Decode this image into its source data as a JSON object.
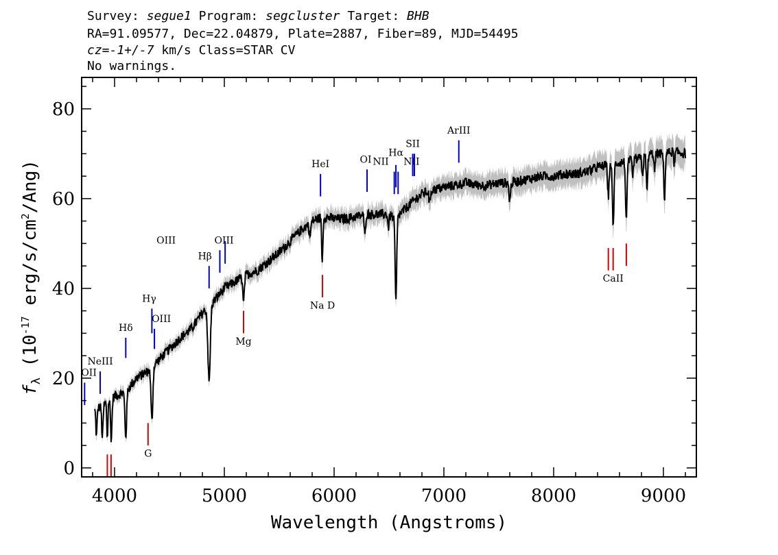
{
  "header": {
    "line1": [
      {
        "text": "Survey: ",
        "italic": false
      },
      {
        "text": "segue1",
        "italic": true
      },
      {
        "text": " Program: ",
        "italic": false
      },
      {
        "text": "segcluster",
        "italic": true
      },
      {
        "text": " Target: ",
        "italic": false
      },
      {
        "text": "BHB",
        "italic": true
      }
    ],
    "line2": "RA=91.09577, Dec=22.04879, Plate=2887, Fiber=89, MJD=54495",
    "line3": [
      {
        "text": "cz=-1+/-7",
        "italic": true
      },
      {
        "text": " km/s Class=STAR CV",
        "italic": false
      }
    ],
    "line4": "No warnings."
  },
  "chart_data": {
    "type": "line",
    "xlabel": "Wavelength (Angstroms)",
    "ylabel_prefix": "f",
    "ylabel_sub": "λ",
    "ylabel_mid": " (10",
    "ylabel_exp1": "-17",
    "ylabel_post": " erg/s/cm",
    "ylabel_exp2": "2",
    "ylabel_end": "/Ang)",
    "xlim": [
      3700,
      9300
    ],
    "ylim": [
      -2,
      87
    ],
    "xticks": [
      4000,
      5000,
      6000,
      7000,
      8000,
      9000
    ],
    "yticks": [
      0,
      20,
      40,
      60,
      80
    ],
    "x_minor_step": 200,
    "y_minor_step": 5,
    "spectrum_color": "#000000",
    "error_color": "#c0c0c0",
    "continuum": [
      [
        3820,
        13
      ],
      [
        3900,
        14
      ],
      [
        4000,
        16
      ],
      [
        4100,
        17
      ],
      [
        4200,
        20
      ],
      [
        4300,
        21.5
      ],
      [
        4400,
        24
      ],
      [
        4500,
        26.5
      ],
      [
        4600,
        29
      ],
      [
        4700,
        31
      ],
      [
        4800,
        34.5
      ],
      [
        4900,
        37
      ],
      [
        5000,
        40
      ],
      [
        5100,
        41.5
      ],
      [
        5200,
        43
      ],
      [
        5300,
        44
      ],
      [
        5400,
        46
      ],
      [
        5500,
        48
      ],
      [
        5600,
        50.5
      ],
      [
        5700,
        53
      ],
      [
        5800,
        55
      ],
      [
        5900,
        56
      ],
      [
        6000,
        55.5
      ],
      [
        6100,
        55.5
      ],
      [
        6200,
        56
      ],
      [
        6300,
        56.5
      ],
      [
        6400,
        56.5
      ],
      [
        6500,
        56.5
      ],
      [
        6550,
        55.5
      ],
      [
        6600,
        56.5
      ],
      [
        6700,
        59
      ],
      [
        6800,
        61
      ],
      [
        6900,
        62
      ],
      [
        7000,
        62.5
      ],
      [
        7100,
        63
      ],
      [
        7200,
        63.5
      ],
      [
        7300,
        63
      ],
      [
        7400,
        63
      ],
      [
        7500,
        63.5
      ],
      [
        7600,
        63.5
      ],
      [
        7700,
        64
      ],
      [
        7800,
        64.5
      ],
      [
        7900,
        65
      ],
      [
        8000,
        65
      ],
      [
        8100,
        65.5
      ],
      [
        8200,
        65.5
      ],
      [
        8300,
        66
      ],
      [
        8400,
        67
      ],
      [
        8500,
        67.5
      ],
      [
        8600,
        68
      ],
      [
        8700,
        68.5
      ],
      [
        8800,
        69
      ],
      [
        8900,
        70
      ],
      [
        9000,
        70
      ],
      [
        9100,
        70.5
      ],
      [
        9200,
        70
      ]
    ],
    "absorption": [
      {
        "x": 3835,
        "depth": 6,
        "width": 8
      },
      {
        "x": 3889,
        "depth": 7,
        "width": 9
      },
      {
        "x": 3934,
        "depth": 8,
        "width": 7
      },
      {
        "x": 3970,
        "depth": 9,
        "width": 9
      },
      {
        "x": 4102,
        "depth": 10,
        "width": 11
      },
      {
        "x": 4340,
        "depth": 12,
        "width": 12
      },
      {
        "x": 4861,
        "depth": 17,
        "width": 15
      },
      {
        "x": 5175,
        "depth": 6,
        "width": 10
      },
      {
        "x": 5780,
        "depth": 3,
        "width": 10
      },
      {
        "x": 5892,
        "depth": 10,
        "width": 8
      },
      {
        "x": 6280,
        "depth": 5,
        "width": 8
      },
      {
        "x": 6495,
        "depth": 3,
        "width": 8
      },
      {
        "x": 6563,
        "depth": 19,
        "width": 10
      },
      {
        "x": 6870,
        "depth": 3,
        "width": 8
      },
      {
        "x": 7600,
        "depth": 4,
        "width": 10
      },
      {
        "x": 8498,
        "depth": 7,
        "width": 9
      },
      {
        "x": 8542,
        "depth": 14,
        "width": 10
      },
      {
        "x": 8662,
        "depth": 13,
        "width": 10
      },
      {
        "x": 8720,
        "depth": 4,
        "width": 8
      },
      {
        "x": 8810,
        "depth": 4,
        "width": 8
      },
      {
        "x": 8850,
        "depth": 8,
        "width": 8
      },
      {
        "x": 8920,
        "depth": 4,
        "width": 8
      },
      {
        "x": 9010,
        "depth": 10,
        "width": 9
      },
      {
        "x": 9100,
        "depth": 3,
        "width": 8
      }
    ],
    "emission_lines": [
      {
        "label": "OII",
        "x": 3727,
        "y_low": 14,
        "y_high": 19,
        "label_y": 20.5,
        "anchor": "start",
        "label_dx": -5
      },
      {
        "label": "NeIII",
        "x": 3869,
        "y_low": 16.5,
        "y_high": 21.5,
        "label_y": 23,
        "anchor": "middle",
        "label_dx": 0
      },
      {
        "label": "Hδ",
        "x": 4102,
        "y_low": 24.5,
        "y_high": 29,
        "label_y": 30.5,
        "anchor": "middle",
        "label_dx": 0
      },
      {
        "label": "Hγ",
        "x": 4340,
        "y_low": 30,
        "y_high": 35.5,
        "label_y": 37,
        "anchor": "middle",
        "label_dx": -4
      },
      {
        "label": "OIII",
        "x": 4363,
        "y_low": 26.5,
        "y_high": 31,
        "label_y": 32.5,
        "anchor": "start",
        "label_dx": -4
      },
      {
        "label": "Hβ",
        "x": 4861,
        "y_low": 40,
        "y_high": 45,
        "label_y": 46.5,
        "anchor": "middle",
        "label_dx": -6
      },
      {
        "label": "OIII",
        "x": 4959,
        "y_low": 43.5,
        "y_high": 48.5,
        "label_y": 50,
        "anchor": "start",
        "label_dx": -8
      },
      {
        "label": "OIII",
        "x": 5007,
        "y_low": 45.5,
        "y_high": 50.5,
        "label_y": 50,
        "anchor": "start",
        "label_dx": -100
      },
      {
        "label": "HeI",
        "x": 5876,
        "y_low": 60.5,
        "y_high": 65.5,
        "label_y": 67,
        "anchor": "middle",
        "label_dx": 0
      },
      {
        "label": "OI",
        "x": 6300,
        "y_low": 61.5,
        "y_high": 66.5,
        "label_y": 68,
        "anchor": "middle",
        "label_dx": -2
      },
      {
        "label": "NII",
        "x": 6548,
        "y_low": 61,
        "y_high": 66,
        "label_y": 67.5,
        "anchor": "end",
        "label_dx": -8
      },
      {
        "label": "Hα",
        "x": 6563,
        "y_low": 62.5,
        "y_high": 67.5,
        "label_y": 69.5,
        "anchor": "middle",
        "label_dx": 0
      },
      {
        "label": "NII",
        "x": 6583,
        "y_low": 61,
        "y_high": 66,
        "label_y": 67.5,
        "anchor": "start",
        "label_dx": 8
      },
      {
        "label": "SII",
        "x": 6716,
        "y_low": 65,
        "y_high": 70,
        "label_y": 71.5,
        "anchor": "middle",
        "label_dx": 0
      },
      {
        "label": "SII",
        "x": 6731,
        "y_low": 65,
        "y_high": 70,
        "label_y": 71.5,
        "anchor": "middle",
        "label_dx": -2000
      },
      {
        "label": "ArIII",
        "x": 7136,
        "y_low": 68,
        "y_high": 73,
        "label_y": 74.5,
        "anchor": "middle",
        "label_dx": 0
      }
    ],
    "absorption_lines": [
      {
        "label": "",
        "x": 3934,
        "y_low": -2,
        "y_high": 3
      },
      {
        "label": "",
        "x": 3968,
        "y_low": -2,
        "y_high": 3
      },
      {
        "label": "G",
        "x": 4305,
        "y_low": 5,
        "y_high": 10,
        "label_y": 2.5
      },
      {
        "label": "Mg",
        "x": 5175,
        "y_low": 30,
        "y_high": 35,
        "label_y": 27.5
      },
      {
        "label": "Na D",
        "x": 5894,
        "y_low": 38,
        "y_high": 43,
        "label_y": 35.5
      },
      {
        "label": "CaII",
        "x": 8498,
        "y_low": 44,
        "y_high": 49,
        "label_y": 41.5,
        "label_x": 8542
      },
      {
        "label": "",
        "x": 8542,
        "y_low": 44,
        "y_high": 49
      },
      {
        "label": "",
        "x": 8662,
        "y_low": 45,
        "y_high": 50
      }
    ],
    "emission_color": "#0000cc",
    "absorption_color": "#dd0000"
  }
}
